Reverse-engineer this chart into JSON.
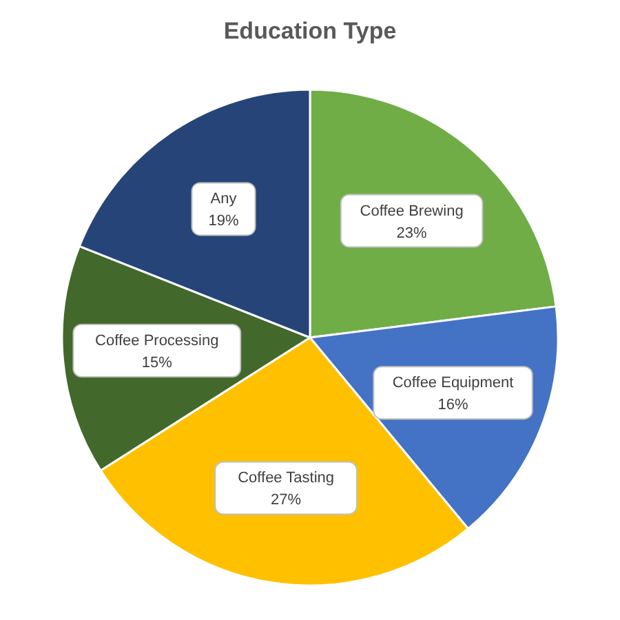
{
  "chart_data": {
    "type": "pie",
    "title": "Education Type",
    "categories": [
      "Coffee Brewing",
      "Coffee Equipment",
      "Coffee Tasting",
      "Coffee Processing",
      "Any"
    ],
    "values": [
      23,
      16,
      27,
      15,
      19
    ],
    "value_labels": [
      "23%",
      "16%",
      "27%",
      "15%",
      "19%"
    ],
    "colors": [
      "#70ad47",
      "#4472c4",
      "#ffc000",
      "#43682b",
      "#264478"
    ]
  }
}
